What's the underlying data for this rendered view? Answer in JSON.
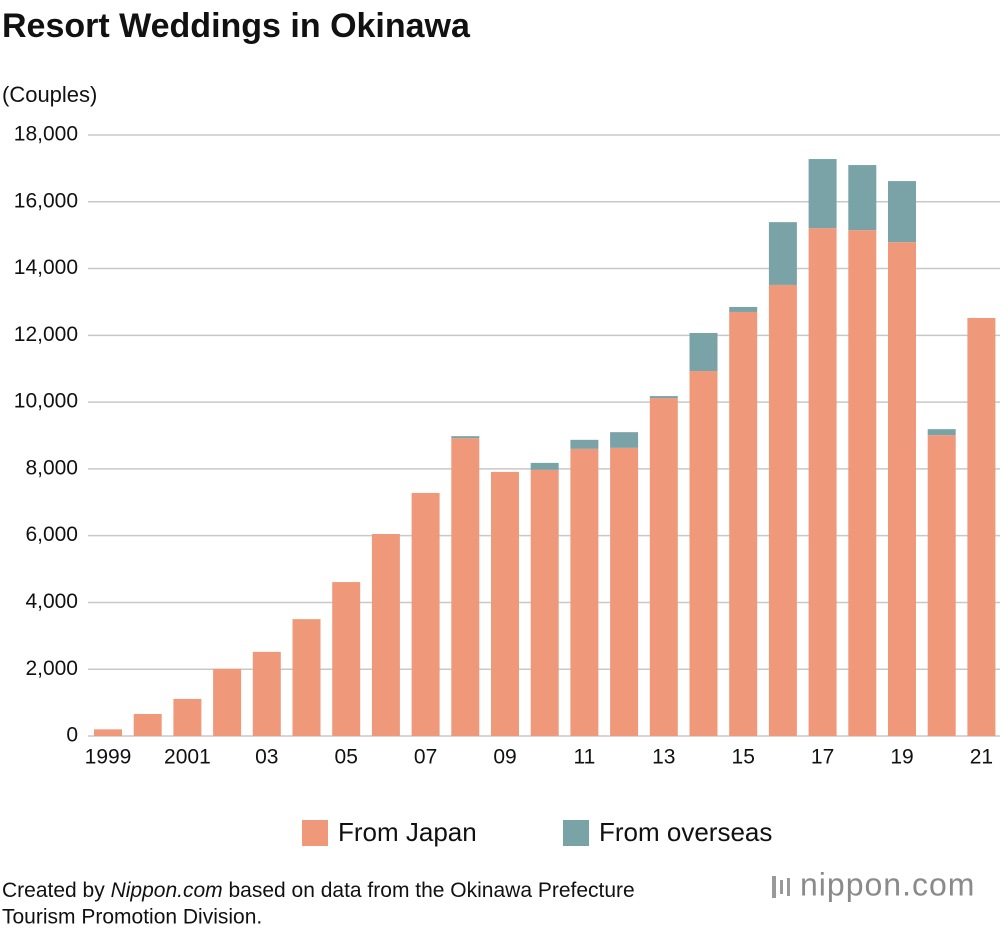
{
  "chart_data": {
    "type": "stacked_bar",
    "title": "Resort Weddings in Okinawa",
    "y_label": "(Couples)",
    "categories": [
      "1999",
      null,
      "2001",
      null,
      "03",
      null,
      "05",
      null,
      "07",
      null,
      "09",
      null,
      "11",
      null,
      "13",
      null,
      "15",
      null,
      "17",
      null,
      "19",
      null,
      "21"
    ],
    "series": [
      {
        "name": "From Japan",
        "color": "#f0997a",
        "values": [
          200,
          660,
          1110,
          2010,
          2520,
          3500,
          4610,
          6050,
          7280,
          8920,
          7910,
          7970,
          8600,
          8630,
          10120,
          10930,
          12700,
          13510,
          15210,
          15150,
          14790,
          9010,
          12520
        ]
      },
      {
        "name": "From overseas",
        "color": "#7aa3a8",
        "values": [
          0,
          0,
          0,
          0,
          0,
          0,
          0,
          0,
          0,
          60,
          0,
          210,
          270,
          470,
          60,
          1140,
          150,
          1880,
          2070,
          1950,
          1830,
          180,
          0
        ]
      }
    ],
    "ylim": [
      0,
      18000
    ],
    "yticks": [
      0,
      {
        "value": 2000,
        "label": "2,000"
      },
      {
        "value": 4000,
        "label": "4,000"
      },
      {
        "value": 6000,
        "label": "6,000"
      },
      {
        "value": 8000,
        "label": "8,000"
      },
      {
        "value": 10000,
        "label": "10,000"
      },
      {
        "value": 12000,
        "label": "12,000"
      },
      {
        "value": 14000,
        "label": "14,000"
      },
      {
        "value": 16000,
        "label": "16,000"
      },
      {
        "value": 18000,
        "label": "18,000"
      }
    ],
    "grid": true
  },
  "source_prefix": "Created by",
  "source_site": "Nippon.com",
  "source_suffix": "based on data from the Okinawa Prefecture",
  "source_suffix_line2": "Tourism Promotion Division.",
  "logo": "nippon.com"
}
